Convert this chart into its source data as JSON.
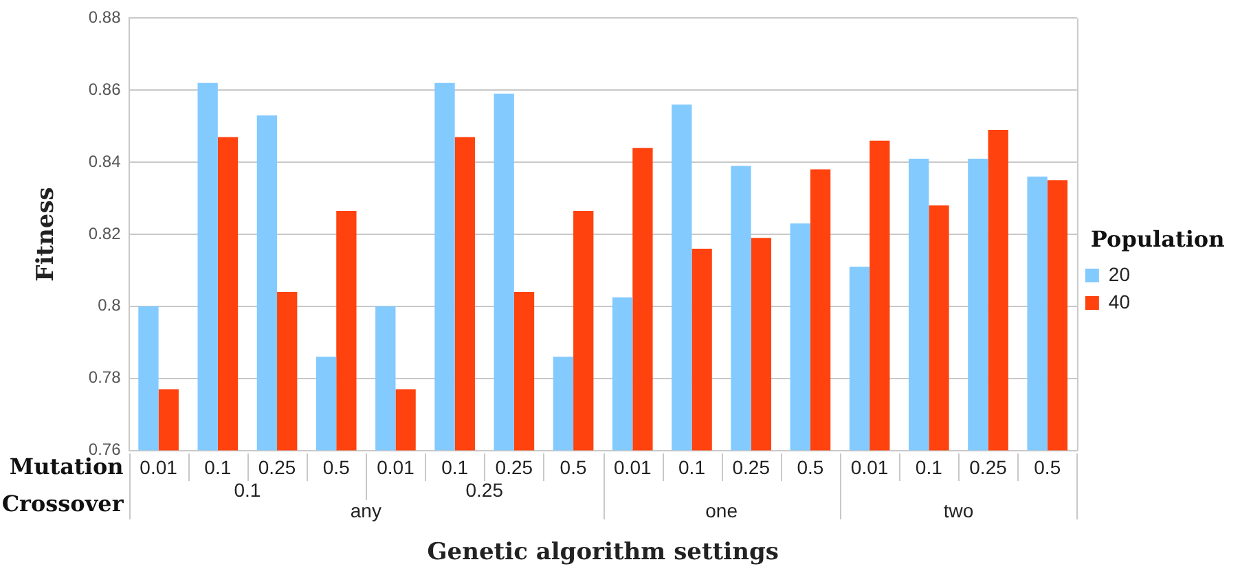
{
  "chart_data": {
    "type": "bar",
    "xlabel": "Genetic algorithm settings",
    "ylabel": "Fitness",
    "legend_title": "Population",
    "legend": "right",
    "categories": [
      "0.01",
      "0.1",
      "0.25",
      "0.5",
      "0.01",
      "0.1",
      "0.25",
      "0.5",
      "0.01",
      "0.1",
      "0.25",
      "0.5",
      "0.01",
      "0.1",
      "0.25",
      "0.5"
    ],
    "series": [
      {
        "name": "20",
        "color": "#83caff",
        "values": [
          0.8,
          0.862,
          0.853,
          0.786,
          0.8,
          0.862,
          0.859,
          0.786,
          0.8025,
          0.856,
          0.839,
          0.823,
          0.811,
          0.841,
          0.841,
          0.836
        ]
      },
      {
        "name": "40",
        "color": "#ff420e",
        "values": [
          0.777,
          0.847,
          0.804,
          0.8265,
          0.777,
          0.847,
          0.804,
          0.8265,
          0.844,
          0.816,
          0.819,
          0.838,
          0.846,
          0.828,
          0.849,
          0.835
        ]
      }
    ],
    "ylim": [
      0.76,
      0.88
    ],
    "yticks": [
      0.76,
      0.78,
      0.8,
      0.82,
      0.84,
      0.86,
      0.88
    ],
    "grid": "y",
    "annotations": [
      "Mutation",
      "Crossover",
      "0.1",
      "0.25",
      "any",
      "one",
      "two"
    ]
  }
}
